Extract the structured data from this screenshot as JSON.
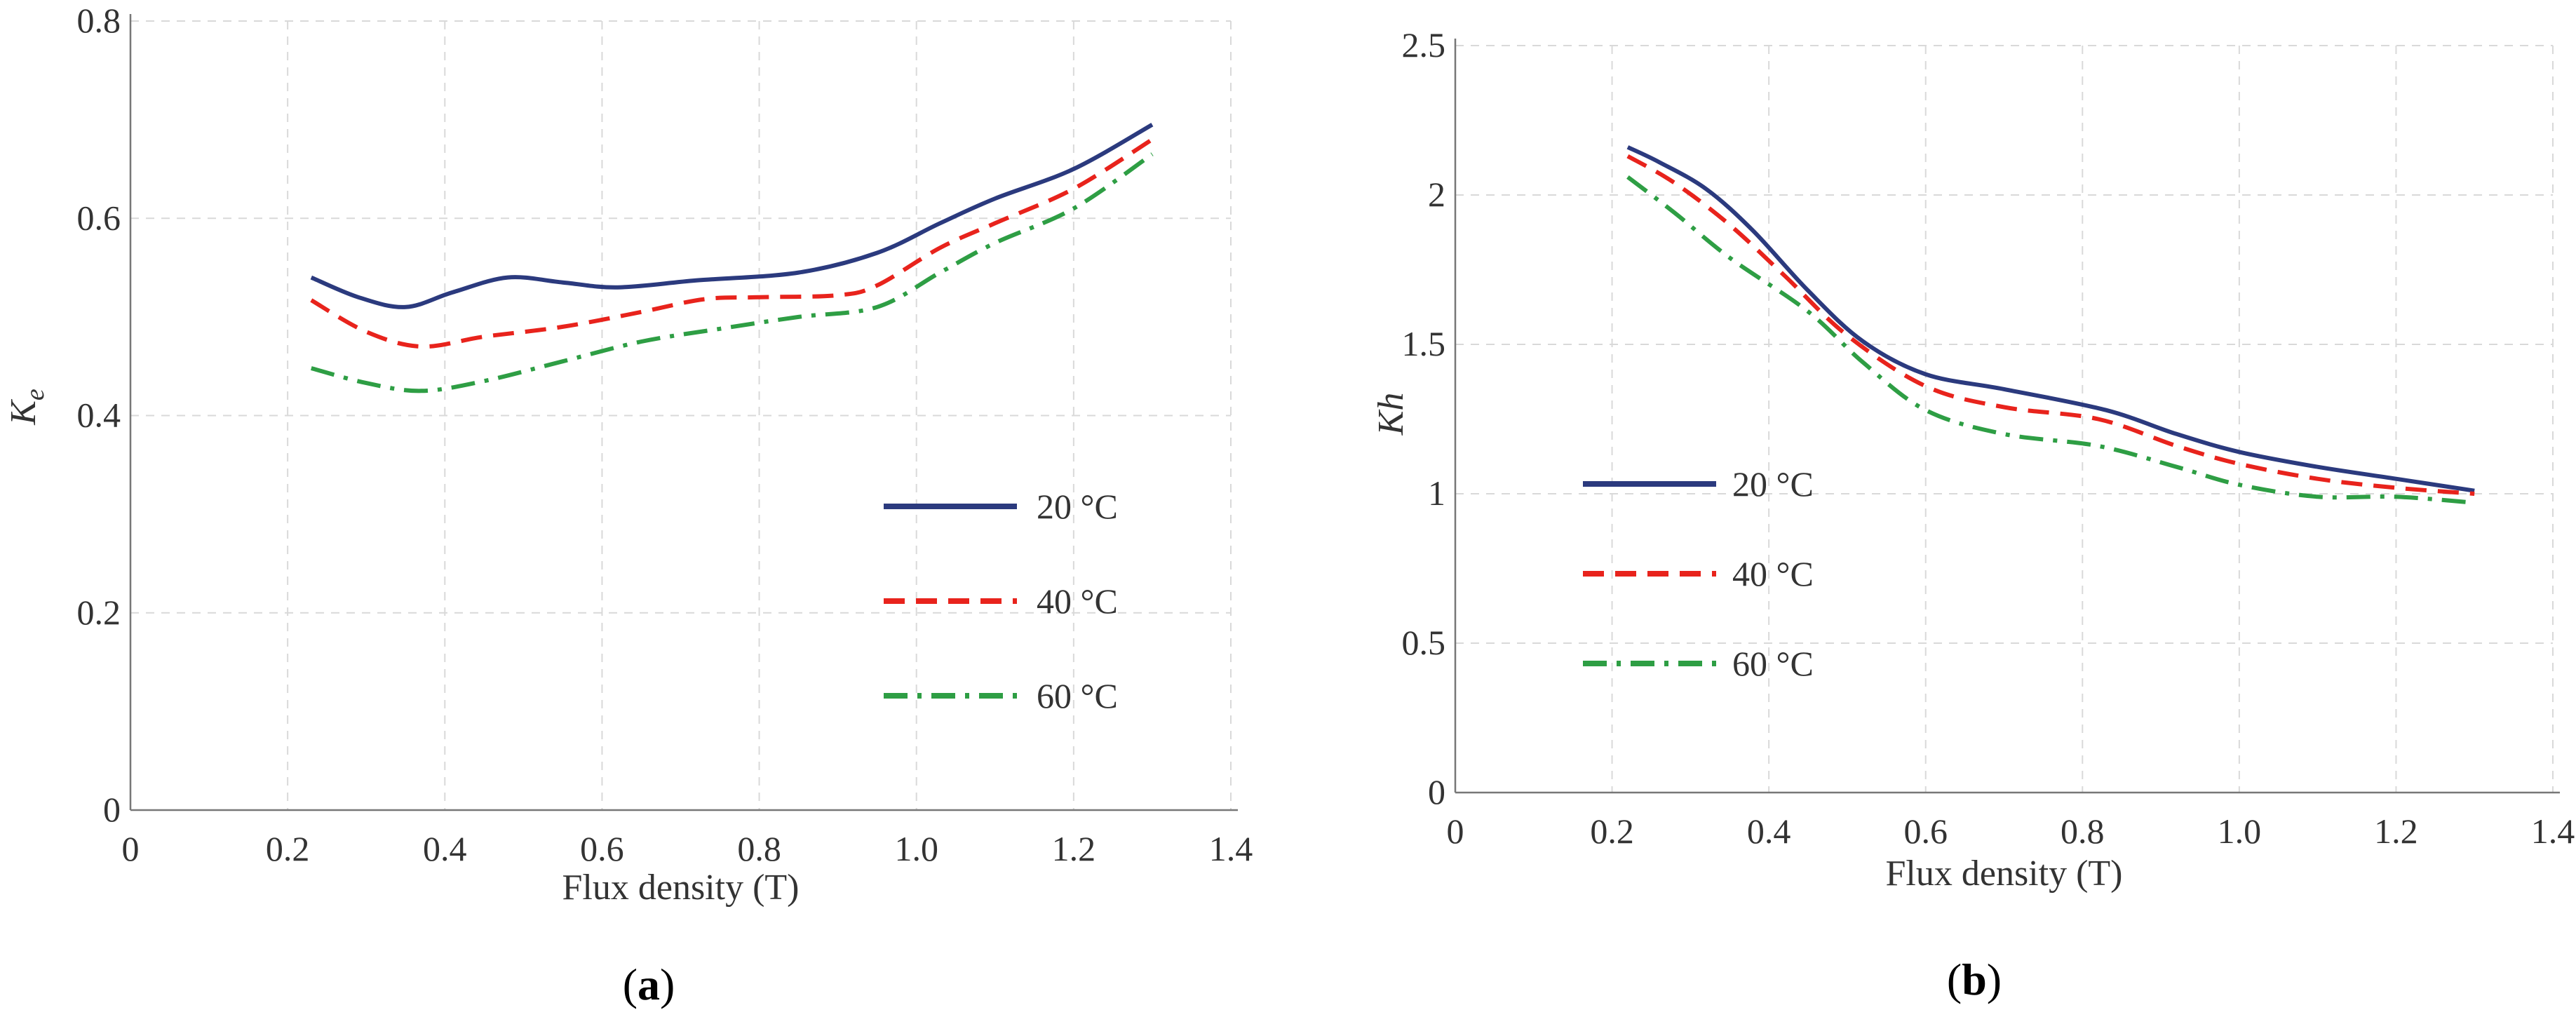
{
  "chart_data": [
    {
      "panel": "a",
      "type": "line",
      "panel_label_open": "(",
      "panel_label_letter": "a",
      "panel_label_close": ")",
      "xlabel": "Flux density (T)",
      "ylabel_base": "K",
      "ylabel_sub": "e",
      "xlim": [
        0,
        1.4
      ],
      "ylim": [
        0,
        0.8
      ],
      "xticks": [
        0,
        0.2,
        0.4,
        0.6,
        0.8,
        1.0,
        1.2,
        1.4
      ],
      "xtick_labels": [
        "0",
        "0.2",
        "0.4",
        "0.6",
        "0.8",
        "1.0",
        "1.2",
        "1.4"
      ],
      "yticks": [
        0,
        0.2,
        0.4,
        0.6,
        0.8
      ],
      "ytick_labels": [
        "0",
        "0.2",
        "0.4",
        "0.6",
        "0.8"
      ],
      "grid": true,
      "legend_position": "lower-right",
      "series": [
        {
          "name": "20 °C",
          "label_num": "20",
          "label_unit": "°C",
          "color": "#2b3a7e",
          "style": "solid",
          "x": [
            0.23,
            0.29,
            0.35,
            0.41,
            0.48,
            0.55,
            0.62,
            0.72,
            0.85,
            0.95,
            1.03,
            1.1,
            1.2,
            1.3
          ],
          "y": [
            0.54,
            0.52,
            0.51,
            0.525,
            0.54,
            0.535,
            0.53,
            0.537,
            0.545,
            0.565,
            0.595,
            0.62,
            0.65,
            0.695
          ]
        },
        {
          "name": "40 °C",
          "label_num": "40",
          "label_unit": "°C",
          "color": "#e8231c",
          "style": "dashed",
          "x": [
            0.23,
            0.3,
            0.37,
            0.45,
            0.55,
            0.65,
            0.73,
            0.8,
            0.9,
            0.95,
            1.03,
            1.1,
            1.2,
            1.3
          ],
          "y": [
            0.517,
            0.485,
            0.47,
            0.48,
            0.49,
            0.505,
            0.518,
            0.52,
            0.522,
            0.532,
            0.57,
            0.595,
            0.63,
            0.68
          ]
        },
        {
          "name": "60 °C",
          "label_num": "60",
          "label_unit": "°C",
          "color": "#2e9e44",
          "style": "dashdot",
          "x": [
            0.23,
            0.3,
            0.37,
            0.45,
            0.55,
            0.65,
            0.75,
            0.85,
            0.95,
            1.03,
            1.1,
            1.2,
            1.3
          ],
          "y": [
            0.448,
            0.433,
            0.425,
            0.435,
            0.455,
            0.475,
            0.488,
            0.5,
            0.51,
            0.545,
            0.575,
            0.61,
            0.665
          ]
        }
      ]
    },
    {
      "panel": "b",
      "type": "line",
      "panel_label_open": "(",
      "panel_label_letter": "b",
      "panel_label_close": ")",
      "xlabel": "Flux density (T)",
      "ylabel_base": "Kh",
      "ylabel_sub": "",
      "xlim": [
        0,
        1.4
      ],
      "ylim": [
        0,
        2.5
      ],
      "xticks": [
        0,
        0.2,
        0.4,
        0.6,
        0.8,
        1.0,
        1.2,
        1.4
      ],
      "xtick_labels": [
        "0",
        "0.2",
        "0.4",
        "0.6",
        "0.8",
        "1.0",
        "1.2",
        "1.4"
      ],
      "yticks": [
        0,
        0.5,
        1,
        1.5,
        2,
        2.5
      ],
      "ytick_labels": [
        "0",
        "0.5",
        "1",
        "1.5",
        "2",
        "2.5"
      ],
      "grid": true,
      "legend_position": "middle-left",
      "series": [
        {
          "name": "20 °C",
          "label_num": "20",
          "label_unit": "°C",
          "color": "#2b3a7e",
          "style": "solid",
          "x": [
            0.22,
            0.26,
            0.32,
            0.38,
            0.45,
            0.52,
            0.6,
            0.7,
            0.83,
            0.92,
            1.0,
            1.1,
            1.2,
            1.3
          ],
          "y": [
            2.16,
            2.11,
            2.02,
            1.88,
            1.68,
            1.51,
            1.4,
            1.35,
            1.28,
            1.2,
            1.14,
            1.09,
            1.05,
            1.01
          ]
        },
        {
          "name": "40 °C",
          "label_num": "40",
          "label_unit": "°C",
          "color": "#e8231c",
          "style": "dashed",
          "x": [
            0.22,
            0.28,
            0.35,
            0.42,
            0.5,
            0.6,
            0.7,
            0.82,
            0.92,
            1.0,
            1.1,
            1.2,
            1.3
          ],
          "y": [
            2.13,
            2.04,
            1.9,
            1.73,
            1.53,
            1.36,
            1.29,
            1.25,
            1.16,
            1.1,
            1.05,
            1.02,
            1.0
          ]
        },
        {
          "name": "60 °C",
          "label_num": "60",
          "label_unit": "°C",
          "color": "#2e9e44",
          "style": "dashdot",
          "x": [
            0.22,
            0.28,
            0.35,
            0.45,
            0.52,
            0.6,
            0.7,
            0.82,
            0.92,
            1.0,
            1.1,
            1.2,
            1.3
          ],
          "y": [
            2.06,
            1.94,
            1.79,
            1.61,
            1.44,
            1.28,
            1.2,
            1.16,
            1.09,
            1.03,
            0.99,
            0.99,
            0.97
          ]
        }
      ]
    }
  ]
}
